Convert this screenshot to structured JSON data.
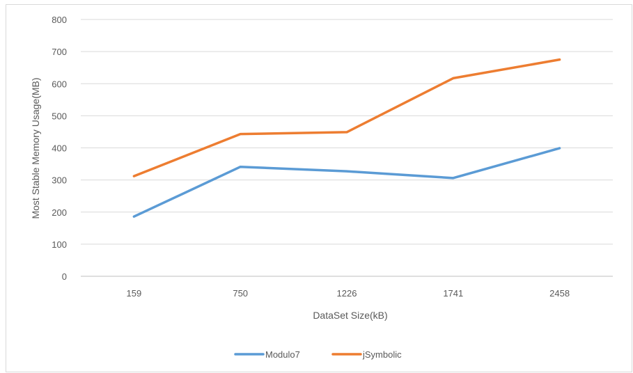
{
  "chart_data": {
    "type": "line",
    "title": "",
    "xlabel": "DataSet Size(kB)",
    "ylabel": "Most Stable Memory Usage(MB)",
    "categories": [
      "159",
      "750",
      "1226",
      "1741",
      "2458"
    ],
    "ylim": [
      0,
      800
    ],
    "yticks": [
      0,
      100,
      200,
      300,
      400,
      500,
      600,
      700,
      800
    ],
    "grid": true,
    "legend_position": "bottom",
    "series": [
      {
        "name": "Modulo7",
        "color": "#5b9bd5",
        "values": [
          186,
          341,
          327,
          306,
          399
        ]
      },
      {
        "name": "jSymbolic",
        "color": "#ed7d31",
        "values": [
          312,
          443,
          449,
          617,
          675
        ]
      }
    ]
  }
}
